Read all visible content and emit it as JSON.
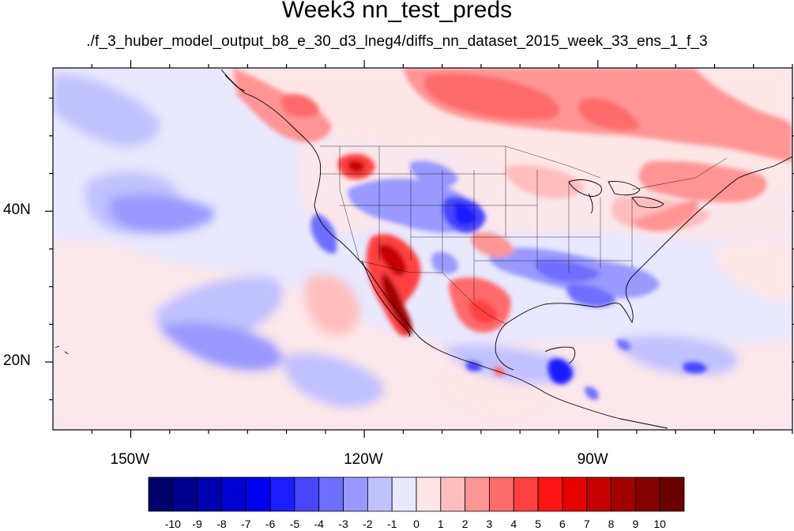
{
  "title": "Week3 nn_test_preds",
  "subtitle": "./f_3_huber_model_output_b8_e_30_d3_lneg4/diffs_nn_dataset_2015_week_33_ens_1_f_3",
  "map": {
    "lon_range": [
      -160,
      -65
    ],
    "lat_range": [
      11,
      59
    ],
    "lat_labels": [
      {
        "value": 40,
        "text": "40N"
      },
      {
        "value": 20,
        "text": "20N"
      }
    ],
    "lon_labels": [
      {
        "value": -150,
        "text": "150W"
      },
      {
        "value": -120,
        "text": "120W"
      },
      {
        "value": -90,
        "text": "90W"
      }
    ]
  },
  "colorbar": {
    "labels": [
      "-10",
      "-9",
      "-8",
      "-7",
      "-6",
      "-5",
      "-4",
      "-3",
      "-2",
      "-1",
      "0",
      "1",
      "2",
      "3",
      "4",
      "5",
      "6",
      "7",
      "8",
      "9",
      "10"
    ],
    "colors": [
      "#00006b",
      "#00008f",
      "#0000b3",
      "#0000d4",
      "#0000f0",
      "#1c1cff",
      "#4646ff",
      "#6e6eff",
      "#9999ff",
      "#c1c1ff",
      "#e8e8ff",
      "#ffe6e6",
      "#ffbdbd",
      "#ff9494",
      "#ff6b6b",
      "#ff4040",
      "#ff1414",
      "#e60000",
      "#c40000",
      "#a30000",
      "#850000",
      "#6b0000"
    ]
  }
}
